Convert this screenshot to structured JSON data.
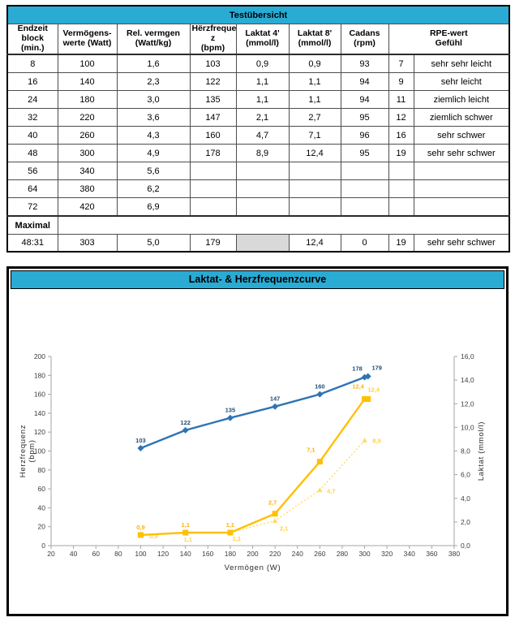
{
  "table": {
    "title": "Testübersicht",
    "header_bg": "#29ABD4",
    "shaded_cell_color": "#D9D9D9",
    "columns": [
      "Endzeit\nblock (min.)",
      "Vermögens-\nwerte (Watt)",
      "Rel. vermgen\n(Watt/kg)",
      "Hërzfrequen\nz\n(bpm)",
      "Laktat 4'\n(mmol/l)",
      "Laktat 8'\n(mmol/l)",
      "Cadans\n(rpm)",
      "RPE-wert\nGefühl"
    ],
    "rows": [
      [
        "8",
        "100",
        "1,6",
        "103",
        "0,9",
        "0,9",
        "93",
        "7",
        "sehr sehr leicht"
      ],
      [
        "16",
        "140",
        "2,3",
        "122",
        "1,1",
        "1,1",
        "94",
        "9",
        "sehr leicht"
      ],
      [
        "24",
        "180",
        "3,0",
        "135",
        "1,1",
        "1,1",
        "94",
        "11",
        "ziemlich leicht"
      ],
      [
        "32",
        "220",
        "3,6",
        "147",
        "2,1",
        "2,7",
        "95",
        "12",
        "ziemlich schwer"
      ],
      [
        "40",
        "260",
        "4,3",
        "160",
        "4,7",
        "7,1",
        "96",
        "16",
        "sehr schwer"
      ],
      [
        "48",
        "300",
        "4,9",
        "178",
        "8,9",
        "12,4",
        "95",
        "19",
        "sehr sehr schwer"
      ],
      [
        "56",
        "340",
        "5,6",
        "",
        "",
        "",
        "",
        "",
        ""
      ],
      [
        "64",
        "380",
        "6,2",
        "",
        "",
        "",
        "",
        "",
        ""
      ],
      [
        "72",
        "420",
        "6,9",
        "",
        "",
        "",
        "",
        "",
        ""
      ]
    ],
    "maximal_label": "Maximal",
    "maximal_row": [
      "48:31",
      "303",
      "5,0",
      "179",
      "",
      "12,4",
      "0",
      "19",
      "sehr sehr schwer"
    ]
  },
  "chart": {
    "title": "Laktat- & Herzfrequenzcurve",
    "header_bg": "#29ABD4"
  },
  "chart_data": {
    "type": "line",
    "title": "Laktat- & Herzfrequenzcurve",
    "xlabel": "Vermögen (W)",
    "ylabel_left": "Herzfrequenz\n(bpm)",
    "ylabel_right": "Laktat (mmol/l)",
    "xlim": [
      20,
      380
    ],
    "ylim_left": [
      0,
      200
    ],
    "ylim_right": [
      0,
      16
    ],
    "x_ticks": [
      20,
      40,
      60,
      80,
      100,
      120,
      140,
      160,
      180,
      200,
      220,
      240,
      260,
      280,
      300,
      320,
      340,
      360,
      380
    ],
    "y_ticks_left": [
      "0",
      "20",
      "40",
      "60",
      "80",
      "100",
      "120",
      "140",
      "160",
      "180",
      "200"
    ],
    "y_ticks_left_values": [
      0,
      20,
      40,
      60,
      80,
      100,
      120,
      140,
      160,
      180,
      200
    ],
    "y_ticks_right": [
      "0,0",
      "2,0",
      "4,0",
      "6,0",
      "8,0",
      "10,0",
      "12,0",
      "14,0",
      "16,0"
    ],
    "y_ticks_right_values": [
      0,
      2,
      4,
      6,
      8,
      10,
      12,
      14,
      16
    ],
    "grid": false,
    "legend": "none",
    "axis_color": "#a6a6a6",
    "series": [
      {
        "name": "Herzfrequenz",
        "axis": "left",
        "color": "#2E74B5",
        "label_color": "#1F4E79",
        "marker": "diamond",
        "style": "solid",
        "x": [
          100,
          140,
          180,
          220,
          260,
          300,
          303
        ],
        "y": [
          103,
          122,
          135,
          147,
          160,
          178,
          179
        ],
        "labels": [
          "103",
          "122",
          "135",
          "147",
          "160",
          "178",
          "179"
        ]
      },
      {
        "name": "Laktat 8'",
        "axis": "right",
        "color": "#FFC000",
        "label_color": "#FFB300",
        "marker": "square",
        "style": "solid",
        "x": [
          100,
          140,
          180,
          220,
          260,
          300,
          303
        ],
        "y": [
          0.9,
          1.1,
          1.1,
          2.7,
          7.1,
          12.4,
          12.4
        ],
        "labels": [
          "0,9",
          "1,1",
          "1,1",
          "2,7",
          "7,1",
          "12,4",
          "12,4"
        ],
        "label_color_overrides": {
          "6": "#FFD24D"
        }
      },
      {
        "name": "Laktat 4'",
        "axis": "right",
        "color": "#FFD966",
        "label_color": "#FFD24D",
        "marker": "triangle",
        "style": "dashed",
        "x": [
          100,
          140,
          180,
          220,
          260,
          300
        ],
        "y": [
          0.9,
          1.1,
          1.1,
          2.1,
          4.7,
          8.9
        ],
        "labels": [
          "0,9",
          "1,1",
          "1,1",
          "2,1",
          "4,7",
          "8,9"
        ]
      }
    ]
  }
}
